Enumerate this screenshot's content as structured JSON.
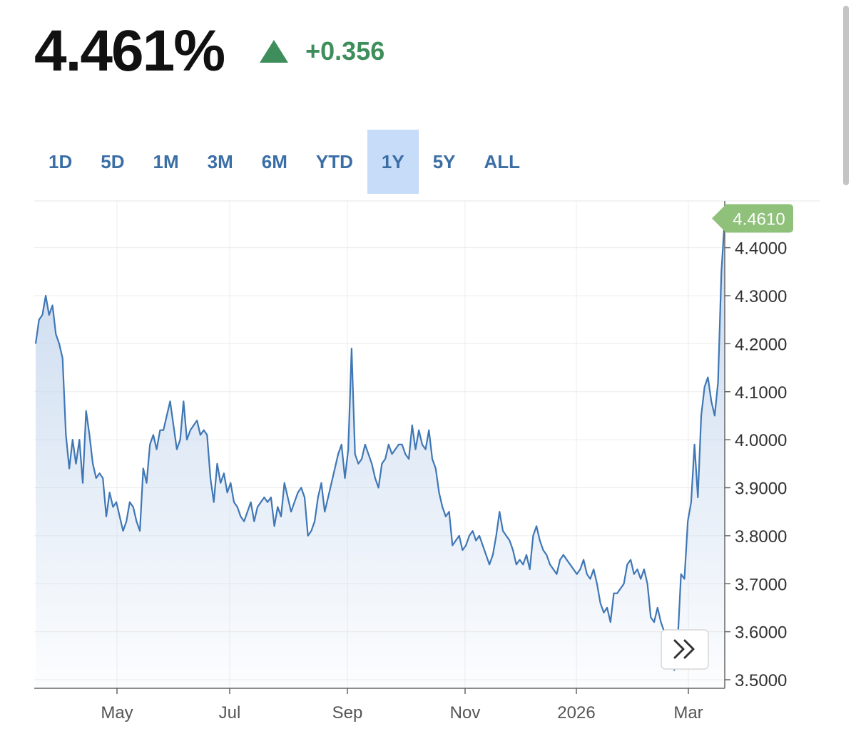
{
  "quote": {
    "price": "4.461%",
    "change": "+0.356",
    "up_color": "#3e8e5c"
  },
  "tabs": [
    {
      "label": "1D",
      "active": false
    },
    {
      "label": "5D",
      "active": false
    },
    {
      "label": "1M",
      "active": false
    },
    {
      "label": "3M",
      "active": false
    },
    {
      "label": "6M",
      "active": false
    },
    {
      "label": "YTD",
      "active": false
    },
    {
      "label": "1Y",
      "active": true
    },
    {
      "label": "5Y",
      "active": false
    },
    {
      "label": "ALL",
      "active": false
    }
  ],
  "chart_data": {
    "type": "area",
    "title": "",
    "xlabel": "",
    "ylabel": "",
    "x_ticks": [
      "May",
      "Jul",
      "Sep",
      "Nov",
      "2026",
      "Mar"
    ],
    "y_ticks": [
      "3.5000",
      "3.6000",
      "3.7000",
      "3.8000",
      "3.9000",
      "4.0000",
      "4.1000",
      "4.2000",
      "4.3000",
      "4.4000"
    ],
    "ylim": [
      3.5,
      4.5
    ],
    "grid": true,
    "last_value_label": "4.4610",
    "line_color": "#3f77b5",
    "fill_color": "#c5d7ee",
    "badge_color": "#8fc17b",
    "series": [
      {
        "values": [
          4.2,
          4.25,
          4.26,
          4.3,
          4.26,
          4.28,
          4.22,
          4.2,
          4.17,
          4.01,
          3.94,
          4.0,
          3.95,
          4.0,
          3.91,
          4.06,
          4.01,
          3.95,
          3.92,
          3.93,
          3.92,
          3.84,
          3.89,
          3.86,
          3.87,
          3.84,
          3.81,
          3.83,
          3.87,
          3.86,
          3.83,
          3.81,
          3.94,
          3.91,
          3.99,
          4.01,
          3.98,
          4.02,
          4.02,
          4.05,
          4.08,
          4.03,
          3.98,
          4.0,
          4.08,
          4.0,
          4.02,
          4.03,
          4.04,
          4.01,
          4.02,
          4.01,
          3.92,
          3.87,
          3.95,
          3.91,
          3.93,
          3.89,
          3.91,
          3.87,
          3.86,
          3.84,
          3.83,
          3.85,
          3.87,
          3.83,
          3.86,
          3.87,
          3.88,
          3.87,
          3.88,
          3.82,
          3.86,
          3.84,
          3.91,
          3.88,
          3.85,
          3.87,
          3.89,
          3.9,
          3.88,
          3.8,
          3.81,
          3.83,
          3.88,
          3.91,
          3.85,
          3.88,
          3.91,
          3.94,
          3.97,
          3.99,
          3.92,
          3.98,
          4.19,
          3.97,
          3.95,
          3.96,
          3.99,
          3.97,
          3.95,
          3.92,
          3.9,
          3.95,
          3.96,
          3.99,
          3.97,
          3.98,
          3.99,
          3.99,
          3.97,
          3.96,
          4.03,
          3.98,
          4.02,
          3.99,
          3.98,
          4.02,
          3.96,
          3.94,
          3.89,
          3.86,
          3.84,
          3.85,
          3.78,
          3.79,
          3.8,
          3.77,
          3.78,
          3.8,
          3.81,
          3.79,
          3.8,
          3.78,
          3.76,
          3.74,
          3.76,
          3.8,
          3.85,
          3.81,
          3.8,
          3.79,
          3.77,
          3.74,
          3.75,
          3.74,
          3.76,
          3.73,
          3.8,
          3.82,
          3.79,
          3.77,
          3.76,
          3.74,
          3.73,
          3.72,
          3.75,
          3.76,
          3.75,
          3.74,
          3.73,
          3.72,
          3.73,
          3.75,
          3.72,
          3.71,
          3.73,
          3.7,
          3.66,
          3.64,
          3.65,
          3.62,
          3.68,
          3.68,
          3.69,
          3.7,
          3.74,
          3.75,
          3.72,
          3.73,
          3.71,
          3.73,
          3.7,
          3.63,
          3.62,
          3.65,
          3.62,
          3.6,
          3.59,
          3.55,
          3.52,
          3.58,
          3.72,
          3.71,
          3.83,
          3.87,
          3.99,
          3.88,
          4.05,
          4.11,
          4.13,
          4.08,
          4.05,
          4.12,
          4.35,
          4.461
        ]
      }
    ]
  }
}
